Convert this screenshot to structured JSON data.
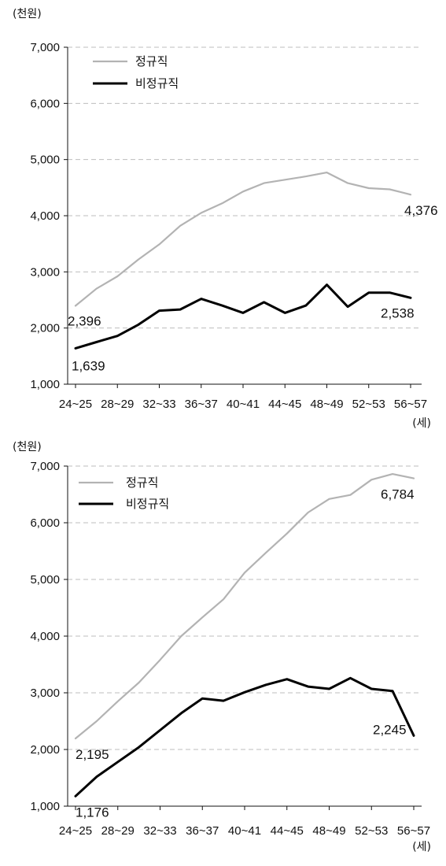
{
  "chart_data": [
    {
      "type": "line",
      "y_unit": "(천원)",
      "x_unit": "(세)",
      "ylim": [
        1000,
        7000
      ],
      "y_ticks": [
        "1,000",
        "2,000",
        "3,000",
        "4,000",
        "5,000",
        "6,000",
        "7,000"
      ],
      "x_tick_labels": [
        "24~25",
        "28~29",
        "32~33",
        "36~37",
        "40~41",
        "44~45",
        "48~49",
        "52~53",
        "56~57"
      ],
      "grid": true,
      "legend_position": "top-left",
      "series": [
        {
          "name": "정규직",
          "color": "#b3b3b3",
          "values": [
            2396,
            2700,
            2920,
            3220,
            3490,
            3820,
            4050,
            4220,
            4430,
            4580,
            4640,
            4700,
            4770,
            4580,
            4490,
            4470,
            4376
          ]
        },
        {
          "name": "비정규직",
          "color": "#000000",
          "values": [
            1639,
            1750,
            1860,
            2060,
            2310,
            2330,
            2520,
            2400,
            2270,
            2460,
            2270,
            2400,
            2770,
            2380,
            2630,
            2630,
            2538
          ]
        }
      ],
      "data_labels": [
        {
          "text": "2,396",
          "series": 0,
          "index": 0
        },
        {
          "text": "4,376",
          "series": 0,
          "index": 16
        },
        {
          "text": "1,639",
          "series": 1,
          "index": 0
        },
        {
          "text": "2,538",
          "series": 1,
          "index": 16
        }
      ]
    },
    {
      "type": "line",
      "y_unit": "(천원)",
      "x_unit": "(세)",
      "ylim": [
        1000,
        7000
      ],
      "y_ticks": [
        "1,000",
        "2,000",
        "3,000",
        "4,000",
        "5,000",
        "6,000",
        "7,000"
      ],
      "x_tick_labels": [
        "24~25",
        "28~29",
        "32~33",
        "36~37",
        "40~41",
        "44~45",
        "48~49",
        "52~53",
        "56~57"
      ],
      "grid": true,
      "legend_position": "top-left",
      "series": [
        {
          "name": "정규직",
          "color": "#b3b3b3",
          "values": [
            2195,
            2500,
            2850,
            3180,
            3580,
            4000,
            4330,
            4650,
            5120,
            5470,
            5810,
            6180,
            6420,
            6490,
            6760,
            6860,
            6784
          ]
        },
        {
          "name": "비정규직",
          "color": "#000000",
          "values": [
            1176,
            1520,
            1780,
            2040,
            2340,
            2640,
            2900,
            2860,
            3010,
            3140,
            3240,
            3110,
            3070,
            3260,
            3070,
            3030,
            2245
          ]
        }
      ],
      "data_labels": [
        {
          "text": "2,195",
          "series": 0,
          "index": 0
        },
        {
          "text": "6,784",
          "series": 0,
          "index": 16
        },
        {
          "text": "1,176",
          "series": 1,
          "index": 0
        },
        {
          "text": "2,245",
          "series": 1,
          "index": 16
        }
      ]
    }
  ]
}
